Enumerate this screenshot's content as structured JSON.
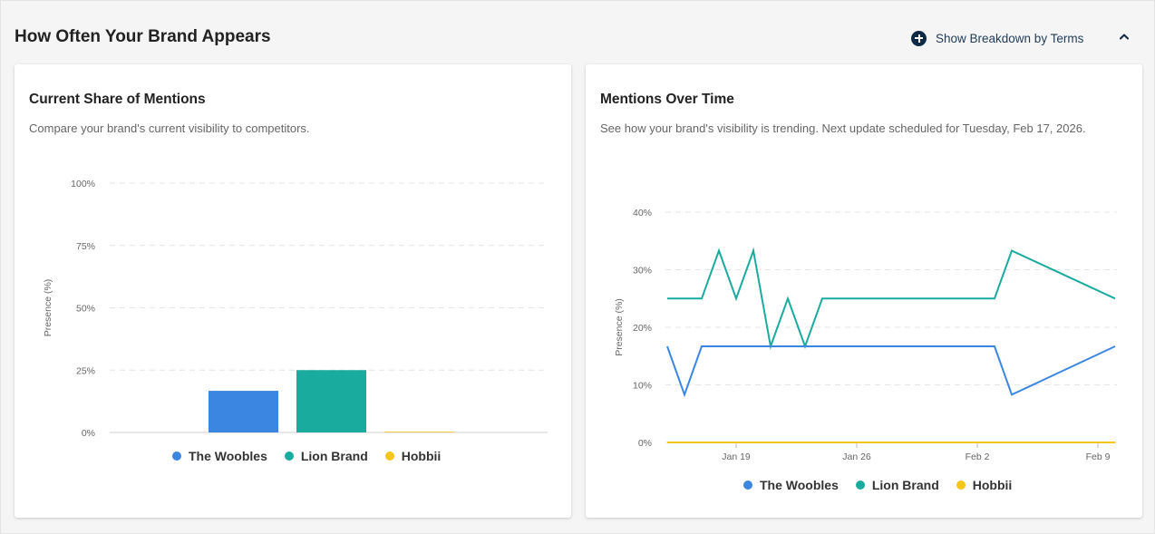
{
  "header": {
    "title": "How Often Your Brand Appears",
    "breakdown_label": "Show Breakdown by Terms"
  },
  "colors": {
    "The Woobles": "#3b86e0",
    "Lion Brand": "#1aab9f",
    "Hobbii": "#f5c518"
  },
  "left_card": {
    "title": "Current Share of Mentions",
    "subtitle": "Compare your brand's current visibility to competitors."
  },
  "right_card": {
    "title": "Mentions Over Time",
    "subtitle": "See how your brand's visibility is trending. Next update scheduled for Tuesday, Feb 17, 2026."
  },
  "chart_data": [
    {
      "type": "bar",
      "categories": [
        "The Woobles",
        "Lion Brand",
        "Hobbii"
      ],
      "values": [
        16.7,
        25,
        0.3
      ],
      "ylabel": "Presence (%)",
      "ylim": [
        0,
        100
      ],
      "yticks": [
        "0%",
        "25%",
        "50%",
        "75%",
        "100%"
      ],
      "ytick_values": [
        0,
        25,
        50,
        75,
        100
      ],
      "legend": [
        "The Woobles",
        "Lion Brand",
        "Hobbii"
      ],
      "legend_position": "bottom",
      "grid": true
    },
    {
      "type": "line",
      "x": [
        "2026-01-15",
        "2026-01-16",
        "2026-01-17",
        "2026-01-18",
        "2026-01-19",
        "2026-01-20",
        "2026-01-21",
        "2026-01-22",
        "2026-01-23",
        "2026-01-24",
        "2026-01-25",
        "2026-02-03",
        "2026-02-04",
        "2026-02-10"
      ],
      "series": [
        {
          "name": "The Woobles",
          "values": [
            16.7,
            8.3,
            16.7,
            16.7,
            16.7,
            16.7,
            16.7,
            16.7,
            16.7,
            16.7,
            16.7,
            16.7,
            8.3,
            16.7
          ]
        },
        {
          "name": "Lion Brand",
          "values": [
            25,
            25,
            25,
            33.3,
            25,
            33.3,
            16.7,
            25,
            16.7,
            25,
            25,
            25,
            33.3,
            25
          ]
        },
        {
          "name": "Hobbii",
          "values": [
            0,
            0,
            0,
            0,
            0,
            0,
            0,
            0,
            0,
            0,
            0,
            0,
            0,
            0
          ]
        }
      ],
      "ylabel": "Presence (%)",
      "ylim": [
        0,
        40
      ],
      "yticks": [
        "0%",
        "10%",
        "20%",
        "30%",
        "40%"
      ],
      "ytick_values": [
        0,
        10,
        20,
        30,
        40
      ],
      "xticks": [
        "Jan 19",
        "Jan 26",
        "Feb 2",
        "Feb 9"
      ],
      "xtick_values": [
        "2026-01-19",
        "2026-01-26",
        "2026-02-02",
        "2026-02-09"
      ],
      "legend": [
        "The Woobles",
        "Lion Brand",
        "Hobbii"
      ],
      "legend_position": "bottom",
      "grid": true
    }
  ]
}
